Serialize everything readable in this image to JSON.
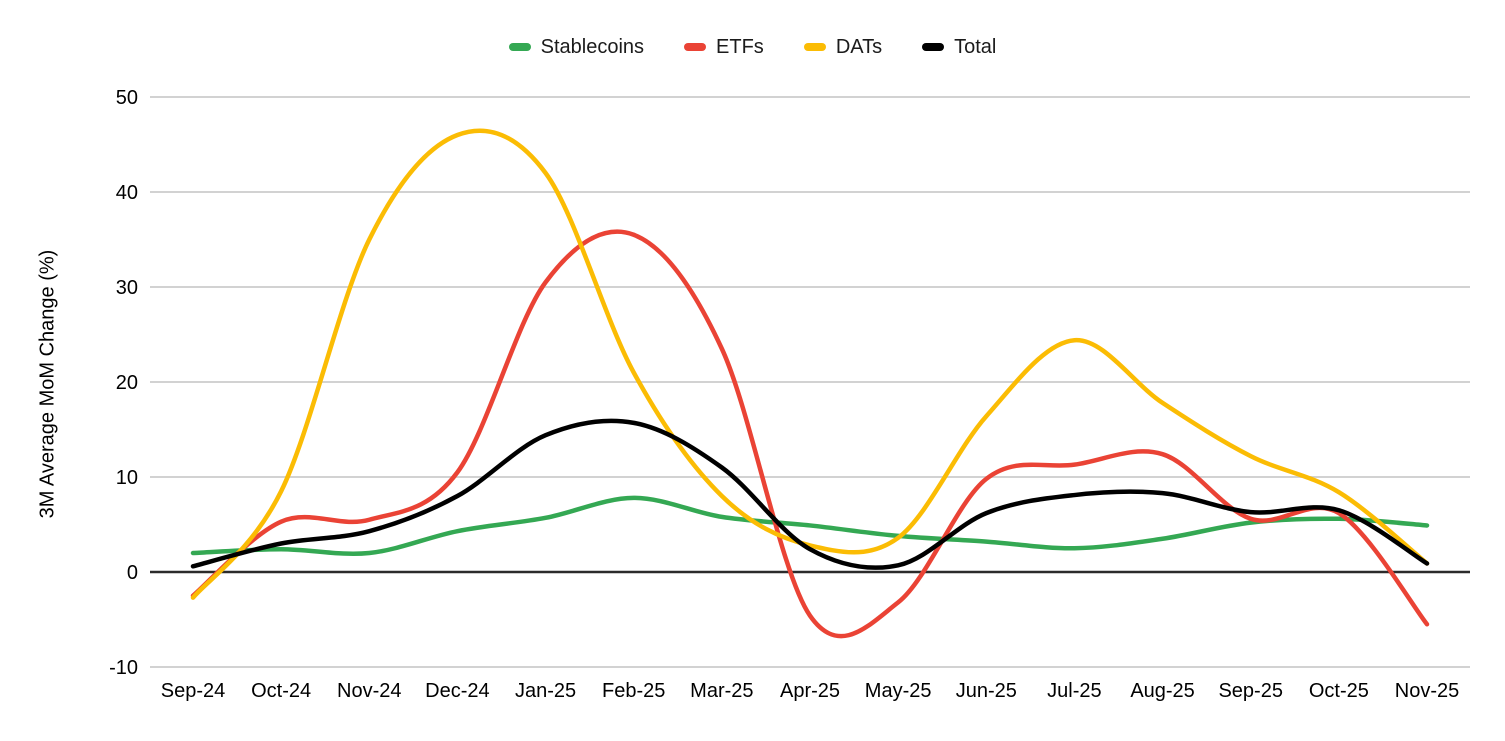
{
  "chart_data": {
    "type": "line",
    "title": "",
    "xlabel": "",
    "ylabel": "3M Average MoM Change (%)",
    "ylim": [
      -10,
      50
    ],
    "y_ticks": [
      50,
      40,
      30,
      20,
      10,
      0,
      -10
    ],
    "grid": "horizontal",
    "legend_position": "top",
    "smooth": true,
    "categories": [
      "Sep-24",
      "Oct-24",
      "Nov-24",
      "Dec-24",
      "Jan-25",
      "Feb-25",
      "Mar-25",
      "Apr-25",
      "May-25",
      "Jun-25",
      "Jul-25",
      "Aug-25",
      "Sep-25",
      "Oct-25",
      "Nov-25"
    ],
    "series": [
      {
        "name": "Stablecoins",
        "color": "#34a853",
        "values": [
          2.0,
          2.4,
          2.0,
          4.3,
          5.7,
          7.8,
          5.8,
          4.9,
          3.8,
          3.2,
          2.5,
          3.5,
          5.2,
          5.6,
          4.9
        ]
      },
      {
        "name": "ETFs",
        "color": "#ea4335",
        "values": [
          -2.5,
          5.3,
          5.5,
          10.5,
          30.5,
          35.5,
          23.5,
          -4.6,
          -3.2,
          9.8,
          11.3,
          12.4,
          5.6,
          6.2,
          -5.5
        ]
      },
      {
        "name": "DATs",
        "color": "#fbbc04",
        "values": [
          -2.7,
          8.5,
          35.0,
          46.0,
          42.0,
          21.0,
          8.0,
          2.8,
          3.6,
          16.4,
          24.4,
          17.8,
          12.2,
          8.4,
          0.9
        ]
      },
      {
        "name": "Total",
        "color": "#000000",
        "values": [
          0.6,
          3.0,
          4.3,
          8.0,
          14.4,
          15.7,
          11.0,
          2.4,
          0.7,
          6.2,
          8.1,
          8.3,
          6.3,
          6.5,
          0.9
        ]
      }
    ],
    "colors": {
      "gridline": "#d2d2d2",
      "zero_line": "#2b2b2b",
      "tick_text": "#000000"
    }
  }
}
